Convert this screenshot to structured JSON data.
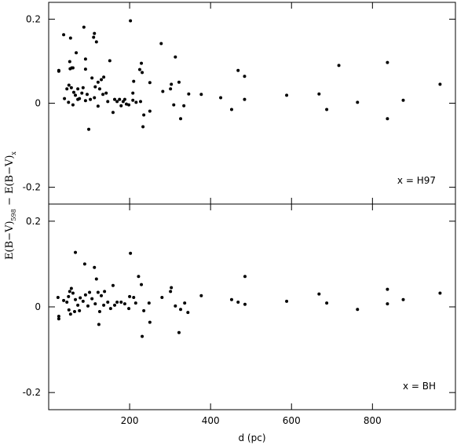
{
  "ylabel": {
    "part1": "E(B−V)",
    "sub1": "598",
    "part2": " − E(B−V)",
    "sub2": "x"
  },
  "chart_data": [
    {
      "type": "scatter",
      "annotation": "x = H97",
      "color": "#000000",
      "xlim": [
        0,
        1005
      ],
      "ylim": [
        -0.24,
        0.24
      ],
      "yticks": [
        -0.2,
        0,
        0.2
      ],
      "x": [
        25,
        25,
        37,
        54,
        52,
        53,
        57,
        60,
        68,
        87,
        91,
        91,
        111,
        113,
        118,
        151,
        202,
        225,
        229,
        231,
        278,
        313,
        468,
        484,
        717,
        837,
        967,
        876,
        837,
        763,
        668,
        687,
        588,
        484,
        425,
        452,
        377,
        346,
        334,
        326,
        322,
        309,
        303,
        301,
        282,
        250,
        250,
        233,
        235,
        227,
        208,
        208,
        210,
        216,
        198,
        99,
        122,
        159,
        179,
        188,
        39,
        45,
        50,
        56,
        62,
        49,
        60,
        66,
        72,
        76,
        82,
        85,
        91,
        95,
        103,
        107,
        115,
        122,
        130,
        136,
        126,
        134,
        142,
        146,
        163,
        169,
        175,
        184,
        192,
        113,
        72
      ],
      "values": [
        0.078,
        0.076,
        0.163,
        0.155,
        0.099,
        0.082,
        0.084,
        0.084,
        0.12,
        0.181,
        0.105,
        0.081,
        0.157,
        0.166,
        0.146,
        0.101,
        0.196,
        0.08,
        0.095,
        0.073,
        0.142,
        0.11,
        0.078,
        0.064,
        0.09,
        0.097,
        0.045,
        0.007,
        -0.037,
        0.002,
        0.022,
        -0.015,
        0.019,
        0.009,
        0.013,
        -0.015,
        0.021,
        0.022,
        -0.006,
        -0.037,
        0.05,
        -0.004,
        0.045,
        0.034,
        0.028,
        0.049,
        -0.019,
        -0.056,
        -0.028,
        0.004,
        0.024,
        0.007,
        0.052,
        0.002,
        -0.004,
        -0.062,
        -0.007,
        -0.022,
        -0.006,
        0.009,
        0.011,
        0.034,
        0.043,
        0.037,
        0.026,
        0.002,
        -0.004,
        0.019,
        0.034,
        0.011,
        0.024,
        0.037,
        0.006,
        0.021,
        0.009,
        0.06,
        0.039,
        0.05,
        0.056,
        0.062,
        0.034,
        0.021,
        0.024,
        0.004,
        0.009,
        0.004,
        0.009,
        0.004,
        -0.002,
        0.013,
        0.009
      ]
    },
    {
      "type": "scatter",
      "annotation": "x = BH",
      "color": "#000000",
      "xlabel": "d (pc)",
      "xlim": [
        0,
        1005
      ],
      "ylim": [
        -0.24,
        0.24
      ],
      "yticks": [
        -0.2,
        0,
        0.2
      ],
      "xticks": [
        200,
        400,
        600,
        800
      ],
      "x": [
        25,
        25,
        23,
        37,
        66,
        89,
        113,
        118,
        202,
        222,
        485,
        229,
        159,
        303,
        301,
        280,
        377,
        452,
        468,
        485,
        588,
        668,
        687,
        763,
        837,
        837,
        876,
        967,
        231,
        250,
        322,
        124,
        326,
        336,
        344,
        313,
        248,
        235,
        215,
        210,
        200,
        188,
        179,
        169,
        163,
        153,
        146,
        138,
        130,
        122,
        115,
        107,
        101,
        91,
        85,
        78,
        72,
        66,
        60,
        56,
        52,
        49,
        45,
        50,
        54,
        64,
        76,
        97,
        126,
        198,
        136
      ],
      "values": [
        -0.028,
        -0.022,
        0.022,
        0.015,
        0.127,
        0.1,
        0.092,
        0.065,
        0.125,
        0.071,
        0.071,
        0.052,
        0.05,
        0.045,
        0.036,
        0.022,
        0.026,
        0.017,
        0.011,
        0.006,
        0.013,
        0.03,
        0.009,
        -0.006,
        0.041,
        0.007,
        0.017,
        0.032,
        -0.069,
        -0.036,
        -0.06,
        -0.041,
        -0.006,
        0.009,
        -0.013,
        0.002,
        0.009,
        -0.009,
        0.009,
        0.022,
        0.024,
        0.007,
        0.011,
        0.011,
        0.004,
        -0.004,
        0.011,
        0.036,
        0.026,
        0.034,
        0.007,
        0.019,
        0.034,
        0.028,
        0.013,
        0.021,
        0.004,
        0.017,
        0.032,
        0.043,
        0.036,
        0.024,
        0.011,
        -0.007,
        -0.017,
        -0.011,
        -0.009,
        0.002,
        -0.011,
        -0.004,
        0.004
      ]
    }
  ]
}
